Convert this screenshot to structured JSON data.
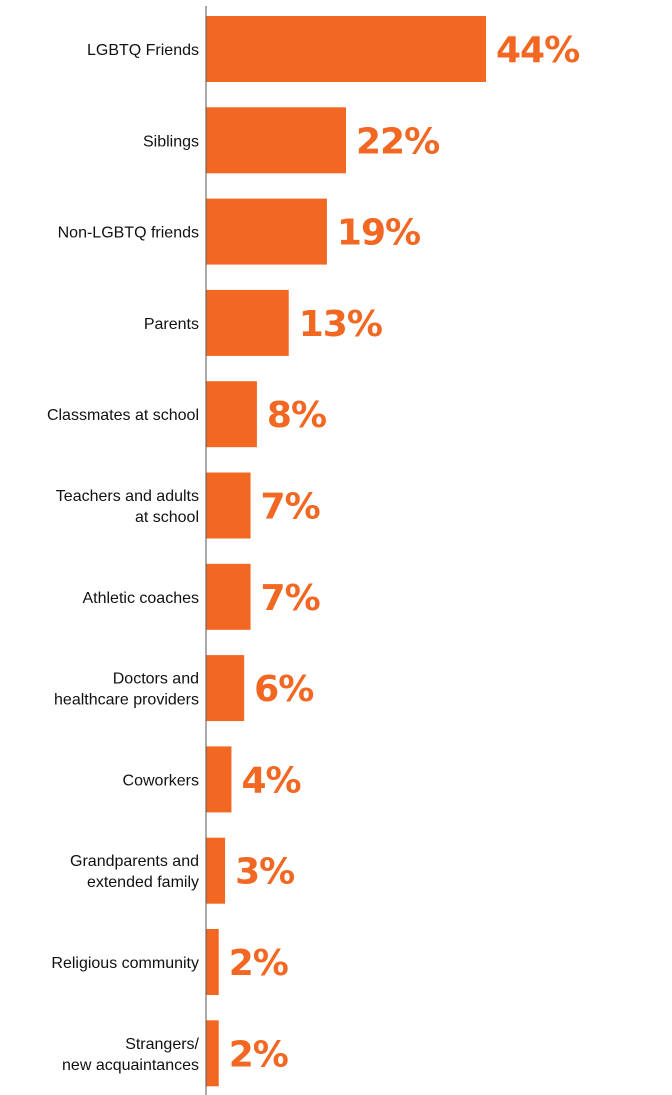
{
  "chart_data": {
    "type": "bar",
    "orientation": "horizontal",
    "title": "",
    "xlabel": "",
    "ylabel": "",
    "categories": [
      [
        "LGBTQ Friends"
      ],
      [
        "Siblings"
      ],
      [
        "Non-LGBTQ friends"
      ],
      [
        "Parents"
      ],
      [
        "Classmates at school"
      ],
      [
        "Teachers and adults",
        "at school"
      ],
      [
        "Athletic coaches"
      ],
      [
        "Doctors and",
        "healthcare providers"
      ],
      [
        "Coworkers"
      ],
      [
        "Grandparents and",
        "extended family"
      ],
      [
        "Religious community"
      ],
      [
        "Strangers/",
        "new acquaintances"
      ]
    ],
    "values": [
      44,
      22,
      19,
      13,
      8,
      7,
      7,
      6,
      4,
      3,
      2,
      2
    ],
    "value_labels": [
      "44%",
      "22%",
      "19%",
      "13%",
      "8%",
      "7%",
      "7%",
      "6%",
      "4%",
      "3%",
      "2%",
      "2%"
    ],
    "unit": "%",
    "xlim": [
      0,
      44
    ],
    "grid": false,
    "legend": "none",
    "colors": {
      "bar": "#F26722",
      "value_label": "#F26722",
      "category_label": "#111111",
      "axis": "#555555"
    }
  }
}
